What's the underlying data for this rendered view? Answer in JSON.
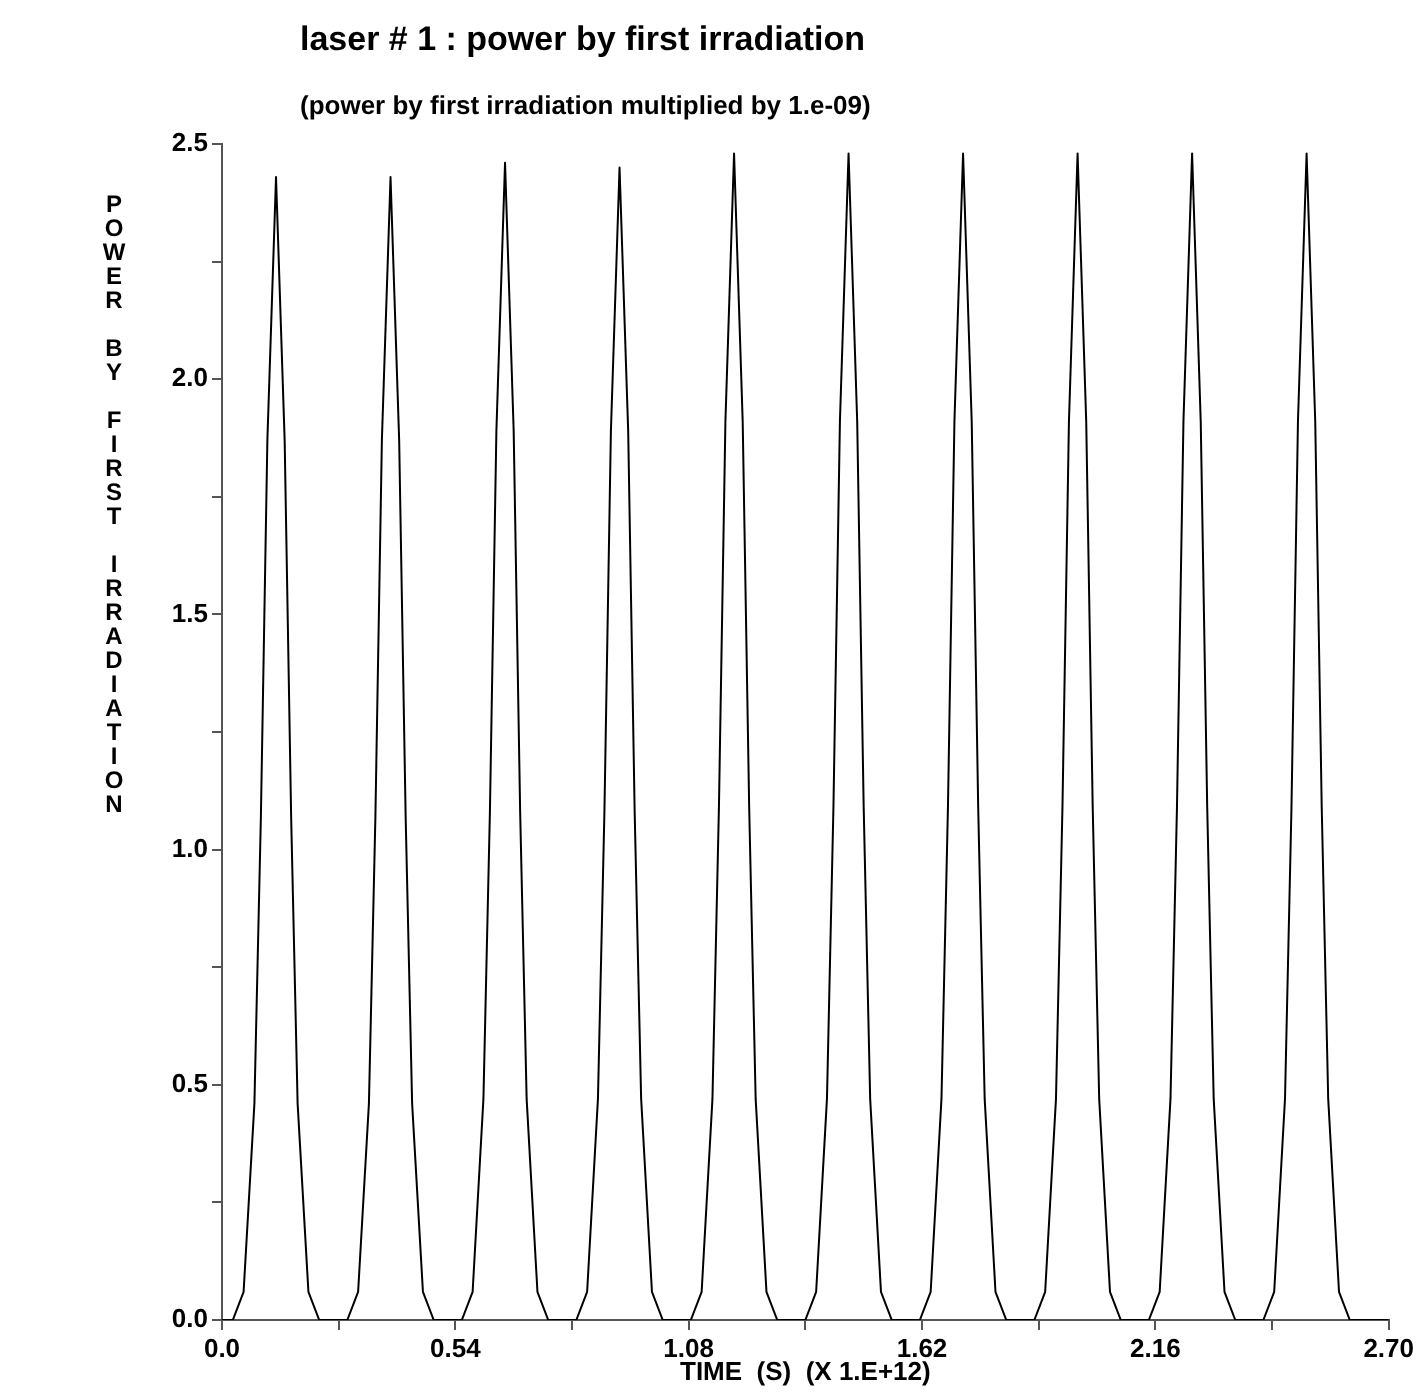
{
  "chart_data": {
    "type": "line",
    "title": "laser # 1 : power by first irradiation",
    "subtitle": "(power by first irradiation multiplied by  1.e-09)",
    "xlabel": "TIME  (S)  (X 1.E+12)",
    "ylabel": "POWER BY FIRST IRRADIATION",
    "marker": "none",
    "xlim": [
      0,
      2.7
    ],
    "xticks": [
      {
        "value": 0,
        "label": "0.0"
      },
      {
        "value": 0.27,
        "label": null
      },
      0.54,
      {
        "value": 0.81,
        "label": null
      },
      1.08,
      {
        "value": 1.35,
        "label": null
      },
      1.62,
      {
        "value": 1.89,
        "label": null
      },
      2.16,
      {
        "value": 2.43,
        "label": null
      },
      {
        "value": 2.7,
        "label": "2.70"
      }
    ],
    "ylim": [
      0,
      2.5
    ],
    "yticks": [
      {
        "value": 0,
        "label": "0.0"
      },
      {
        "value": 0.25,
        "label": null
      },
      0.5,
      {
        "value": 0.75,
        "label": null
      },
      {
        "value": 1,
        "label": "1.0"
      },
      {
        "value": 1.25,
        "label": null
      },
      1.5,
      {
        "value": 1.75,
        "label": null
      },
      {
        "value": 2,
        "label": "2.0"
      },
      {
        "value": 2.25,
        "label": null
      },
      2.5
    ],
    "series": [
      {
        "color": "#000000",
        "x": [
          0,
          0.025,
          0.05,
          0.075,
          0.09,
          0.105,
          0.125,
          0.145,
          0.16,
          0.175,
          0.2,
          0.225,
          0.29,
          0.315,
          0.34,
          0.355,
          0.37,
          0.39,
          0.41,
          0.425,
          0.44,
          0.465,
          0.49,
          0.555,
          0.58,
          0.605,
          0.62,
          0.635,
          0.655,
          0.675,
          0.69,
          0.705,
          0.73,
          0.755,
          0.82,
          0.845,
          0.87,
          0.885,
          0.9,
          0.92,
          0.94,
          0.955,
          0.97,
          0.995,
          1.02,
          1.085,
          1.11,
          1.135,
          1.15,
          1.165,
          1.185,
          1.205,
          1.22,
          1.235,
          1.26,
          1.285,
          1.35,
          1.375,
          1.4,
          1.415,
          1.43,
          1.45,
          1.47,
          1.485,
          1.5,
          1.525,
          1.55,
          1.615,
          1.64,
          1.665,
          1.68,
          1.695,
          1.715,
          1.735,
          1.75,
          1.765,
          1.79,
          1.815,
          1.88,
          1.905,
          1.93,
          1.945,
          1.96,
          1.98,
          2.0,
          2.015,
          2.03,
          2.055,
          2.08,
          2.145,
          2.17,
          2.195,
          2.21,
          2.225,
          2.245,
          2.265,
          2.28,
          2.295,
          2.32,
          2.345,
          2.41,
          2.435,
          2.46,
          2.475,
          2.49,
          2.51,
          2.53,
          2.545,
          2.56,
          2.585,
          2.61,
          2.7
        ],
        "values": [
          0,
          0,
          0.06,
          0.46,
          1.07,
          1.87,
          2.43,
          1.87,
          1.07,
          0.46,
          0.06,
          0,
          0,
          0.06,
          0.46,
          1.07,
          1.87,
          2.43,
          1.87,
          1.07,
          0.46,
          0.06,
          0,
          0,
          0.06,
          0.47,
          1.08,
          1.89,
          2.46,
          1.89,
          1.08,
          0.47,
          0.06,
          0,
          0,
          0.06,
          0.47,
          1.08,
          1.89,
          2.45,
          1.89,
          1.08,
          0.47,
          0.06,
          0,
          0,
          0.06,
          0.47,
          1.09,
          1.91,
          2.48,
          1.91,
          1.09,
          0.47,
          0.06,
          0,
          0,
          0.06,
          0.47,
          1.09,
          1.91,
          2.48,
          1.91,
          1.09,
          0.47,
          0.06,
          0,
          0,
          0.06,
          0.47,
          1.09,
          1.91,
          2.48,
          1.91,
          1.09,
          0.47,
          0.06,
          0,
          0,
          0.06,
          0.47,
          1.09,
          1.91,
          2.48,
          1.91,
          1.09,
          0.47,
          0.06,
          0,
          0,
          0.06,
          0.47,
          1.09,
          1.91,
          2.48,
          1.91,
          1.09,
          0.47,
          0.06,
          0,
          0,
          0.06,
          0.47,
          1.09,
          1.91,
          2.48,
          1.91,
          1.09,
          0.47,
          0.06,
          0,
          0
        ]
      }
    ]
  }
}
